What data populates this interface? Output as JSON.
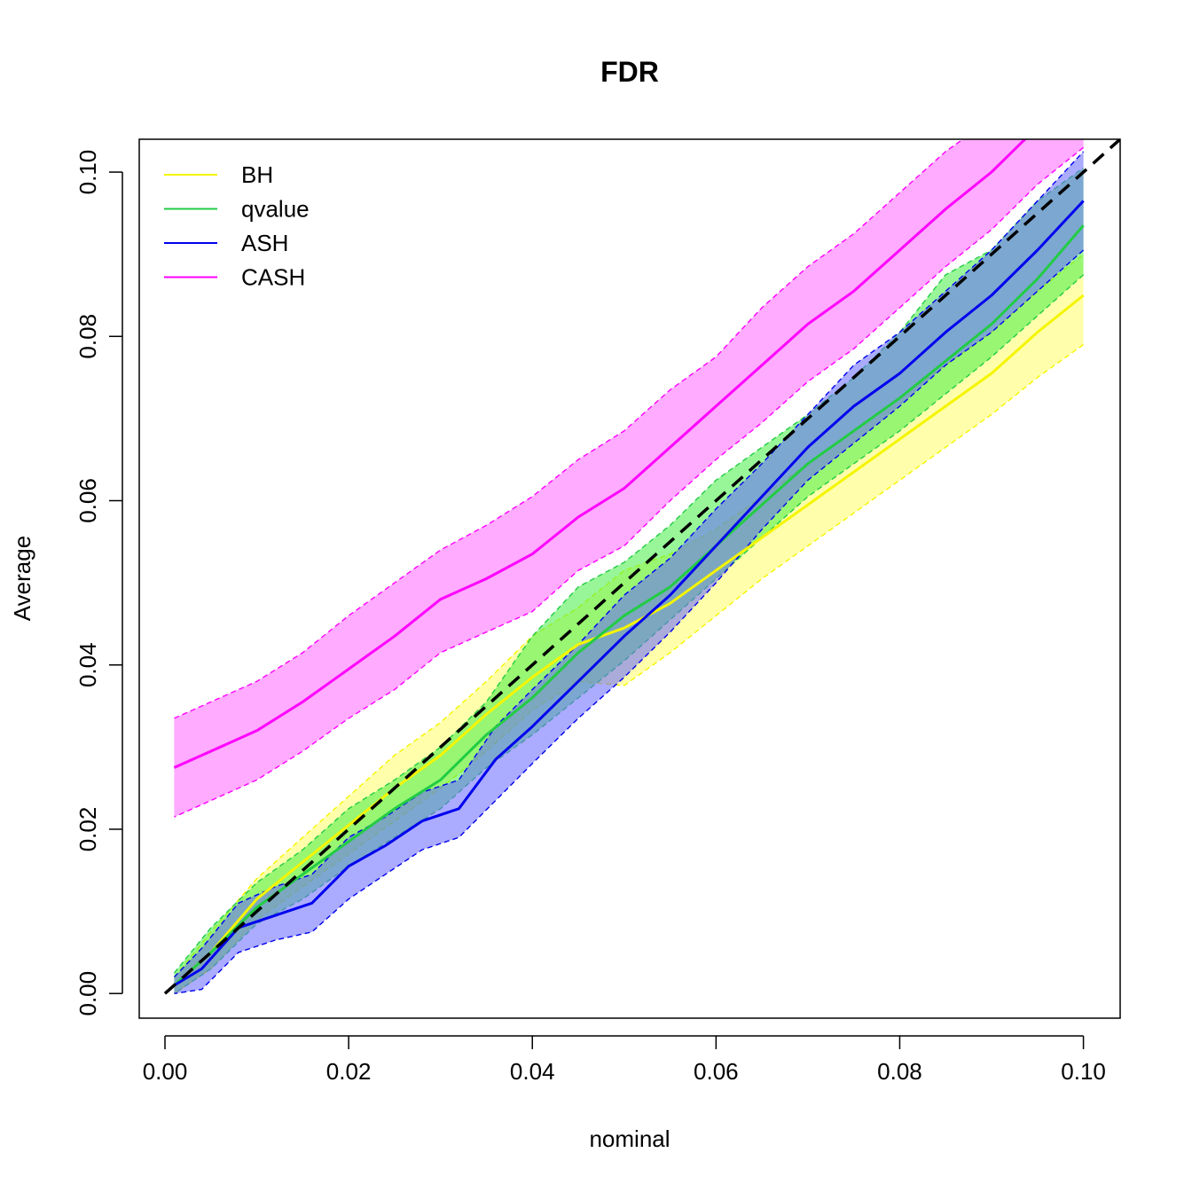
{
  "chart_data": {
    "type": "line",
    "title": "FDR",
    "xlabel": "nominal",
    "ylabel": "Average",
    "xlim": [
      -0.0028,
      0.104
    ],
    "ylim": [
      -0.003,
      0.104
    ],
    "x_ticks": [
      0.0,
      0.02,
      0.04,
      0.06,
      0.08,
      0.1
    ],
    "x_tick_labels": [
      "0.00",
      "0.02",
      "0.04",
      "0.06",
      "0.08",
      "0.10"
    ],
    "y_ticks": [
      0.0,
      0.02,
      0.04,
      0.06,
      0.08,
      0.1
    ],
    "y_tick_labels": [
      "0.00",
      "0.02",
      "0.04",
      "0.06",
      "0.08",
      "0.10"
    ],
    "legend_position": "top-left",
    "reference_line": {
      "x": [
        0,
        0.104
      ],
      "y": [
        0,
        0.104
      ],
      "color": "#000000",
      "style": "dashed"
    },
    "series": [
      {
        "name": "BH",
        "color": "#f5f500",
        "band_color": "#ffff66",
        "x": [
          0.001,
          0.005,
          0.01,
          0.015,
          0.02,
          0.025,
          0.03,
          0.035,
          0.04,
          0.045,
          0.05,
          0.055,
          0.06,
          0.065,
          0.07,
          0.075,
          0.08,
          0.085,
          0.09,
          0.095,
          0.1
        ],
        "y": [
          0.001,
          0.005,
          0.0115,
          0.016,
          0.0205,
          0.025,
          0.029,
          0.034,
          0.0385,
          0.0425,
          0.0445,
          0.0475,
          0.0515,
          0.0555,
          0.0595,
          0.0635,
          0.0675,
          0.0715,
          0.0755,
          0.0805,
          0.085
        ],
        "lower": [
          0.0,
          0.003,
          0.009,
          0.013,
          0.017,
          0.021,
          0.025,
          0.0295,
          0.0345,
          0.038,
          0.0375,
          0.0415,
          0.046,
          0.0505,
          0.0545,
          0.0585,
          0.0625,
          0.0665,
          0.0705,
          0.075,
          0.079
        ],
        "upper": [
          0.002,
          0.0075,
          0.014,
          0.019,
          0.024,
          0.029,
          0.033,
          0.038,
          0.0435,
          0.047,
          0.0515,
          0.0535,
          0.0565,
          0.0605,
          0.0645,
          0.0685,
          0.0725,
          0.0765,
          0.0805,
          0.0855,
          0.09
        ]
      },
      {
        "name": "qvalue",
        "color": "#22cc44",
        "band_color": "#44ee44",
        "x": [
          0.001,
          0.005,
          0.01,
          0.015,
          0.02,
          0.025,
          0.03,
          0.035,
          0.04,
          0.045,
          0.05,
          0.055,
          0.06,
          0.065,
          0.07,
          0.075,
          0.08,
          0.085,
          0.09,
          0.095,
          0.1
        ],
        "y": [
          0.001,
          0.005,
          0.0105,
          0.0145,
          0.0185,
          0.0225,
          0.026,
          0.0315,
          0.036,
          0.0415,
          0.046,
          0.0495,
          0.0545,
          0.0595,
          0.0645,
          0.0685,
          0.0725,
          0.077,
          0.0815,
          0.087,
          0.0935
        ],
        "lower": [
          0.0,
          0.003,
          0.0085,
          0.0115,
          0.0155,
          0.019,
          0.0225,
          0.0275,
          0.0315,
          0.036,
          0.0405,
          0.0455,
          0.0505,
          0.0555,
          0.0605,
          0.0645,
          0.0685,
          0.073,
          0.0775,
          0.0825,
          0.0875
        ],
        "upper": [
          0.0025,
          0.008,
          0.0135,
          0.0175,
          0.0225,
          0.026,
          0.03,
          0.0355,
          0.0435,
          0.0495,
          0.0525,
          0.057,
          0.0625,
          0.0665,
          0.0705,
          0.075,
          0.0805,
          0.0875,
          0.0905,
          0.0965,
          0.1005
        ]
      },
      {
        "name": "ASH",
        "color": "#0000ee",
        "band_color": "#6666ff",
        "x": [
          0.001,
          0.004,
          0.008,
          0.012,
          0.016,
          0.02,
          0.024,
          0.028,
          0.032,
          0.036,
          0.04,
          0.045,
          0.05,
          0.055,
          0.06,
          0.065,
          0.07,
          0.075,
          0.08,
          0.085,
          0.09,
          0.095,
          0.1
        ],
        "y": [
          0.001,
          0.003,
          0.008,
          0.0095,
          0.011,
          0.0155,
          0.018,
          0.021,
          0.0225,
          0.0285,
          0.0325,
          0.038,
          0.0435,
          0.0485,
          0.0545,
          0.0605,
          0.0665,
          0.0715,
          0.0755,
          0.0805,
          0.085,
          0.0905,
          0.0965
        ],
        "lower": [
          0.0,
          0.0005,
          0.005,
          0.0065,
          0.0075,
          0.0115,
          0.0145,
          0.0175,
          0.019,
          0.0235,
          0.028,
          0.0335,
          0.0385,
          0.044,
          0.05,
          0.0565,
          0.0625,
          0.067,
          0.0715,
          0.0765,
          0.0805,
          0.0855,
          0.0905
        ],
        "upper": [
          0.002,
          0.0055,
          0.011,
          0.013,
          0.0145,
          0.019,
          0.0215,
          0.0245,
          0.026,
          0.0325,
          0.037,
          0.0425,
          0.0485,
          0.053,
          0.059,
          0.0645,
          0.0705,
          0.0765,
          0.0805,
          0.0855,
          0.0905,
          0.0965,
          0.1025
        ]
      },
      {
        "name": "CASH",
        "color": "#ff00ff",
        "band_color": "#ff66ff",
        "x": [
          0.001,
          0.005,
          0.01,
          0.015,
          0.02,
          0.025,
          0.03,
          0.035,
          0.04,
          0.045,
          0.05,
          0.055,
          0.06,
          0.065,
          0.07,
          0.075,
          0.08,
          0.085,
          0.09,
          0.095,
          0.1
        ],
        "y": [
          0.0275,
          0.0295,
          0.032,
          0.0355,
          0.0395,
          0.0435,
          0.048,
          0.0505,
          0.0535,
          0.058,
          0.0615,
          0.0665,
          0.0715,
          0.0765,
          0.0815,
          0.0855,
          0.0905,
          0.0955,
          0.1,
          0.1055,
          0.1095
        ],
        "lower": [
          0.0215,
          0.0235,
          0.026,
          0.0295,
          0.0335,
          0.037,
          0.0415,
          0.044,
          0.0465,
          0.0515,
          0.0545,
          0.06,
          0.065,
          0.0695,
          0.0745,
          0.0785,
          0.0835,
          0.0885,
          0.093,
          0.0985,
          0.103
        ],
        "upper": [
          0.0335,
          0.0355,
          0.038,
          0.0415,
          0.046,
          0.05,
          0.054,
          0.057,
          0.0605,
          0.065,
          0.0685,
          0.0735,
          0.0775,
          0.0835,
          0.0885,
          0.0925,
          0.0975,
          0.1025,
          0.1065,
          0.112,
          0.1155
        ]
      }
    ]
  }
}
